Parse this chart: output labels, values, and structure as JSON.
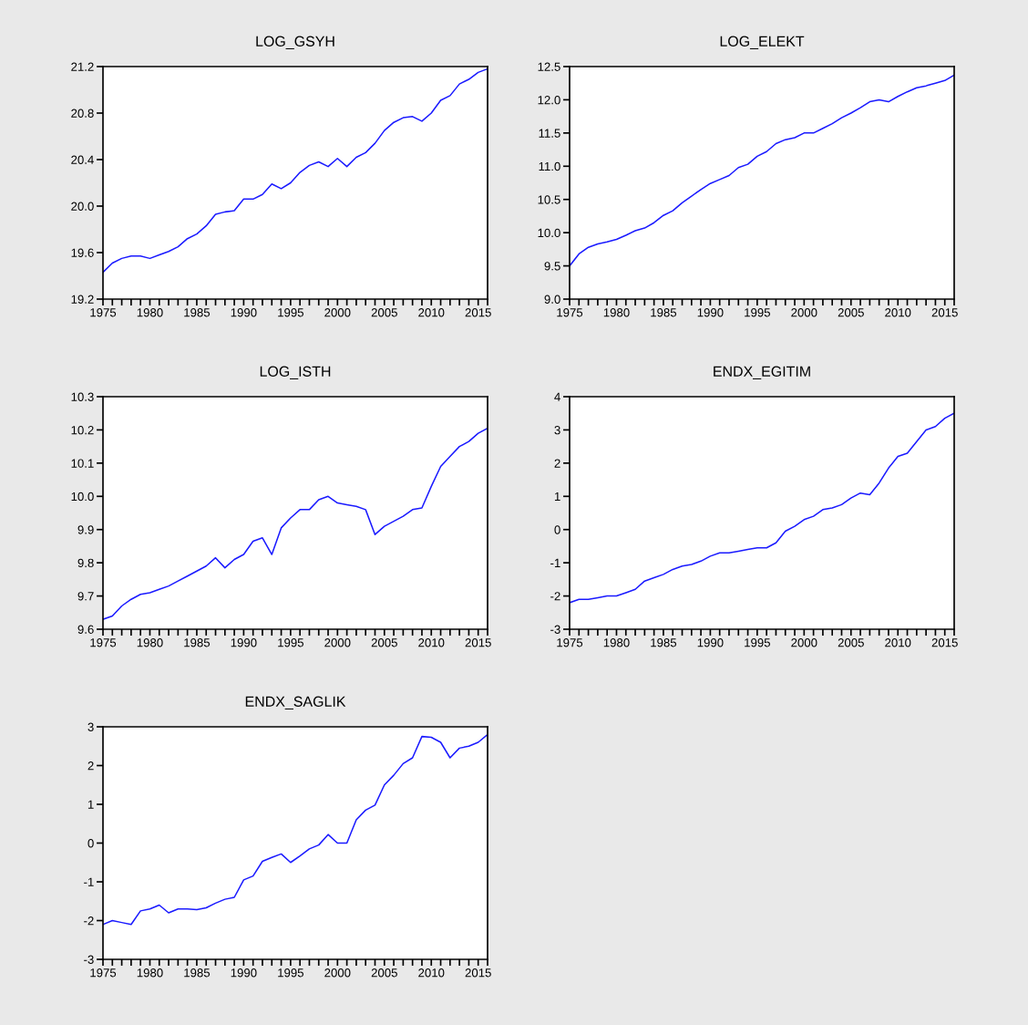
{
  "chart_data": [
    {
      "type": "line",
      "title": "LOG_GSYH",
      "x": [
        1975,
        1976,
        1977,
        1978,
        1979,
        1980,
        1981,
        1982,
        1983,
        1984,
        1985,
        1986,
        1987,
        1988,
        1989,
        1990,
        1991,
        1992,
        1993,
        1994,
        1995,
        1996,
        1997,
        1998,
        1999,
        2000,
        2001,
        2002,
        2003,
        2004,
        2005,
        2006,
        2007,
        2008,
        2009,
        2010,
        2011,
        2012,
        2013,
        2014,
        2015,
        2016
      ],
      "series": [
        {
          "color": "#1a1aff",
          "values": [
            19.43,
            19.51,
            19.55,
            19.57,
            19.57,
            19.55,
            19.58,
            19.61,
            19.65,
            19.72,
            19.76,
            19.83,
            19.93,
            19.95,
            19.96,
            20.06,
            20.06,
            20.1,
            20.19,
            20.15,
            20.2,
            20.29,
            20.35,
            20.38,
            20.34,
            20.41,
            20.34,
            20.42,
            20.46,
            20.54,
            20.65,
            20.72,
            20.76,
            20.77,
            20.73,
            20.8,
            20.91,
            20.95,
            21.05,
            21.09,
            21.15,
            21.18
          ]
        }
      ],
      "xlim": [
        1975,
        2016
      ],
      "xticks": [
        1975,
        {
          "value": 1976,
          "label": null
        },
        {
          "value": 1977,
          "label": null
        },
        {
          "value": 1978,
          "label": null
        },
        {
          "value": 1979,
          "label": null
        },
        1980,
        {
          "value": 1981,
          "label": null
        },
        {
          "value": 1982,
          "label": null
        },
        {
          "value": 1983,
          "label": null
        },
        {
          "value": 1984,
          "label": null
        },
        1985,
        {
          "value": 1986,
          "label": null
        },
        {
          "value": 1987,
          "label": null
        },
        {
          "value": 1988,
          "label": null
        },
        {
          "value": 1989,
          "label": null
        },
        1990,
        {
          "value": 1991,
          "label": null
        },
        {
          "value": 1992,
          "label": null
        },
        {
          "value": 1993,
          "label": null
        },
        {
          "value": 1994,
          "label": null
        },
        1995,
        {
          "value": 1996,
          "label": null
        },
        {
          "value": 1997,
          "label": null
        },
        {
          "value": 1998,
          "label": null
        },
        {
          "value": 1999,
          "label": null
        },
        2000,
        {
          "value": 2001,
          "label": null
        },
        {
          "value": 2002,
          "label": null
        },
        {
          "value": 2003,
          "label": null
        },
        {
          "value": 2004,
          "label": null
        },
        2005,
        {
          "value": 2006,
          "label": null
        },
        {
          "value": 2007,
          "label": null
        },
        {
          "value": 2008,
          "label": null
        },
        {
          "value": 2009,
          "label": null
        },
        2010,
        {
          "value": 2011,
          "label": null
        },
        {
          "value": 2012,
          "label": null
        },
        {
          "value": 2013,
          "label": null
        },
        {
          "value": 2014,
          "label": null
        },
        2015,
        {
          "value": 2016,
          "label": null
        }
      ],
      "ylim": [
        19.2,
        21.2
      ],
      "yticks": [
        19.2,
        19.6,
        {
          "value": 20,
          "label": "20.0"
        },
        20.4,
        20.8,
        21.2
      ],
      "grid": false,
      "legend": false
    },
    {
      "type": "line",
      "title": "LOG_ELEKT",
      "x": [
        1975,
        1976,
        1977,
        1978,
        1979,
        1980,
        1981,
        1982,
        1983,
        1984,
        1985,
        1986,
        1987,
        1988,
        1989,
        1990,
        1991,
        1992,
        1993,
        1994,
        1995,
        1996,
        1997,
        1998,
        1999,
        2000,
        2001,
        2002,
        2003,
        2004,
        2005,
        2006,
        2007,
        2008,
        2009,
        2010,
        2011,
        2012,
        2013,
        2014,
        2015,
        2016
      ],
      "series": [
        {
          "color": "#1a1aff",
          "values": [
            9.5,
            9.68,
            9.78,
            9.83,
            9.86,
            9.9,
            9.96,
            10.03,
            10.07,
            10.15,
            10.26,
            10.33,
            10.45,
            10.55,
            10.65,
            10.74,
            10.8,
            10.86,
            10.98,
            11.03,
            11.15,
            11.22,
            11.34,
            11.4,
            11.43,
            11.5,
            11.5,
            11.57,
            11.64,
            11.73,
            11.8,
            11.88,
            11.97,
            12.0,
            11.97,
            12.05,
            12.12,
            12.18,
            12.21,
            12.25,
            12.29,
            12.37
          ]
        }
      ],
      "xlim": [
        1975,
        2016
      ],
      "xticks": [
        1975,
        {
          "value": 1976,
          "label": null
        },
        {
          "value": 1977,
          "label": null
        },
        {
          "value": 1978,
          "label": null
        },
        {
          "value": 1979,
          "label": null
        },
        1980,
        {
          "value": 1981,
          "label": null
        },
        {
          "value": 1982,
          "label": null
        },
        {
          "value": 1983,
          "label": null
        },
        {
          "value": 1984,
          "label": null
        },
        1985,
        {
          "value": 1986,
          "label": null
        },
        {
          "value": 1987,
          "label": null
        },
        {
          "value": 1988,
          "label": null
        },
        {
          "value": 1989,
          "label": null
        },
        1990,
        {
          "value": 1991,
          "label": null
        },
        {
          "value": 1992,
          "label": null
        },
        {
          "value": 1993,
          "label": null
        },
        {
          "value": 1994,
          "label": null
        },
        1995,
        {
          "value": 1996,
          "label": null
        },
        {
          "value": 1997,
          "label": null
        },
        {
          "value": 1998,
          "label": null
        },
        {
          "value": 1999,
          "label": null
        },
        2000,
        {
          "value": 2001,
          "label": null
        },
        {
          "value": 2002,
          "label": null
        },
        {
          "value": 2003,
          "label": null
        },
        {
          "value": 2004,
          "label": null
        },
        2005,
        {
          "value": 2006,
          "label": null
        },
        {
          "value": 2007,
          "label": null
        },
        {
          "value": 2008,
          "label": null
        },
        {
          "value": 2009,
          "label": null
        },
        2010,
        {
          "value": 2011,
          "label": null
        },
        {
          "value": 2012,
          "label": null
        },
        {
          "value": 2013,
          "label": null
        },
        {
          "value": 2014,
          "label": null
        },
        2015,
        {
          "value": 2016,
          "label": null
        }
      ],
      "ylim": [
        9.0,
        12.5
      ],
      "yticks": [
        {
          "value": 9,
          "label": "9.0"
        },
        9.5,
        {
          "value": 10,
          "label": "10.0"
        },
        10.5,
        {
          "value": 11,
          "label": "11.0"
        },
        11.5,
        {
          "value": 12,
          "label": "12.0"
        },
        12.5
      ],
      "grid": false,
      "legend": false
    },
    {
      "type": "line",
      "title": "LOG_ISTH",
      "x": [
        1975,
        1976,
        1977,
        1978,
        1979,
        1980,
        1981,
        1982,
        1983,
        1984,
        1985,
        1986,
        1987,
        1988,
        1989,
        1990,
        1991,
        1992,
        1993,
        1994,
        1995,
        1996,
        1997,
        1998,
        1999,
        2000,
        2001,
        2002,
        2003,
        2004,
        2005,
        2006,
        2007,
        2008,
        2009,
        2010,
        2011,
        2012,
        2013,
        2014,
        2015,
        2016
      ],
      "series": [
        {
          "color": "#1a1aff",
          "values": [
            9.63,
            9.64,
            9.67,
            9.69,
            9.705,
            9.71,
            9.72,
            9.73,
            9.745,
            9.76,
            9.775,
            9.79,
            9.815,
            9.785,
            9.81,
            9.825,
            9.865,
            9.875,
            9.825,
            9.905,
            9.935,
            9.96,
            9.96,
            9.99,
            10.0,
            9.98,
            9.975,
            9.97,
            9.96,
            9.885,
            9.91,
            9.925,
            9.94,
            9.96,
            9.965,
            10.03,
            10.09,
            10.12,
            10.15,
            10.165,
            10.19,
            10.205
          ]
        }
      ],
      "xlim": [
        1975,
        2016
      ],
      "xticks": [
        1975,
        {
          "value": 1976,
          "label": null
        },
        {
          "value": 1977,
          "label": null
        },
        {
          "value": 1978,
          "label": null
        },
        {
          "value": 1979,
          "label": null
        },
        1980,
        {
          "value": 1981,
          "label": null
        },
        {
          "value": 1982,
          "label": null
        },
        {
          "value": 1983,
          "label": null
        },
        {
          "value": 1984,
          "label": null
        },
        1985,
        {
          "value": 1986,
          "label": null
        },
        {
          "value": 1987,
          "label": null
        },
        {
          "value": 1988,
          "label": null
        },
        {
          "value": 1989,
          "label": null
        },
        1990,
        {
          "value": 1991,
          "label": null
        },
        {
          "value": 1992,
          "label": null
        },
        {
          "value": 1993,
          "label": null
        },
        {
          "value": 1994,
          "label": null
        },
        1995,
        {
          "value": 1996,
          "label": null
        },
        {
          "value": 1997,
          "label": null
        },
        {
          "value": 1998,
          "label": null
        },
        {
          "value": 1999,
          "label": null
        },
        2000,
        {
          "value": 2001,
          "label": null
        },
        {
          "value": 2002,
          "label": null
        },
        {
          "value": 2003,
          "label": null
        },
        {
          "value": 2004,
          "label": null
        },
        2005,
        {
          "value": 2006,
          "label": null
        },
        {
          "value": 2007,
          "label": null
        },
        {
          "value": 2008,
          "label": null
        },
        {
          "value": 2009,
          "label": null
        },
        2010,
        {
          "value": 2011,
          "label": null
        },
        {
          "value": 2012,
          "label": null
        },
        {
          "value": 2013,
          "label": null
        },
        {
          "value": 2014,
          "label": null
        },
        2015,
        {
          "value": 2016,
          "label": null
        }
      ],
      "ylim": [
        9.6,
        10.3
      ],
      "yticks": [
        9.6,
        9.7,
        9.8,
        9.9,
        {
          "value": 10,
          "label": "10.0"
        },
        10.1,
        10.2,
        10.3
      ],
      "grid": false,
      "legend": false
    },
    {
      "type": "line",
      "title": "ENDX_EGITIM",
      "x": [
        1975,
        1976,
        1977,
        1978,
        1979,
        1980,
        1981,
        1982,
        1983,
        1984,
        1985,
        1986,
        1987,
        1988,
        1989,
        1990,
        1991,
        1992,
        1993,
        1994,
        1995,
        1996,
        1997,
        1998,
        1999,
        2000,
        2001,
        2002,
        2003,
        2004,
        2005,
        2006,
        2007,
        2008,
        2009,
        2010,
        2011,
        2012,
        2013,
        2014,
        2015,
        2016
      ],
      "series": [
        {
          "color": "#1a1aff",
          "values": [
            -2.2,
            -2.1,
            -2.1,
            -2.05,
            -2.0,
            -2.0,
            -1.9,
            -1.8,
            -1.55,
            -1.45,
            -1.35,
            -1.2,
            -1.1,
            -1.05,
            -0.95,
            -0.8,
            -0.7,
            -0.7,
            -0.65,
            -0.6,
            -0.55,
            -0.55,
            -0.4,
            -0.05,
            0.1,
            0.3,
            0.4,
            0.6,
            0.65,
            0.75,
            0.95,
            1.1,
            1.05,
            1.4,
            1.85,
            2.2,
            2.3,
            2.65,
            3.0,
            3.1,
            3.35,
            3.5
          ]
        }
      ],
      "xlim": [
        1975,
        2016
      ],
      "xticks": [
        1975,
        {
          "value": 1976,
          "label": null
        },
        {
          "value": 1977,
          "label": null
        },
        {
          "value": 1978,
          "label": null
        },
        {
          "value": 1979,
          "label": null
        },
        1980,
        {
          "value": 1981,
          "label": null
        },
        {
          "value": 1982,
          "label": null
        },
        {
          "value": 1983,
          "label": null
        },
        {
          "value": 1984,
          "label": null
        },
        1985,
        {
          "value": 1986,
          "label": null
        },
        {
          "value": 1987,
          "label": null
        },
        {
          "value": 1988,
          "label": null
        },
        {
          "value": 1989,
          "label": null
        },
        1990,
        {
          "value": 1991,
          "label": null
        },
        {
          "value": 1992,
          "label": null
        },
        {
          "value": 1993,
          "label": null
        },
        {
          "value": 1994,
          "label": null
        },
        1995,
        {
          "value": 1996,
          "label": null
        },
        {
          "value": 1997,
          "label": null
        },
        {
          "value": 1998,
          "label": null
        },
        {
          "value": 1999,
          "label": null
        },
        2000,
        {
          "value": 2001,
          "label": null
        },
        {
          "value": 2002,
          "label": null
        },
        {
          "value": 2003,
          "label": null
        },
        {
          "value": 2004,
          "label": null
        },
        2005,
        {
          "value": 2006,
          "label": null
        },
        {
          "value": 2007,
          "label": null
        },
        {
          "value": 2008,
          "label": null
        },
        {
          "value": 2009,
          "label": null
        },
        2010,
        {
          "value": 2011,
          "label": null
        },
        {
          "value": 2012,
          "label": null
        },
        {
          "value": 2013,
          "label": null
        },
        {
          "value": 2014,
          "label": null
        },
        2015,
        {
          "value": 2016,
          "label": null
        }
      ],
      "ylim": [
        -3,
        4
      ],
      "yticks": [
        -3,
        -2,
        -1,
        0,
        1,
        2,
        3,
        4
      ],
      "grid": false,
      "legend": false
    },
    {
      "type": "line",
      "title": "ENDX_SAGLIK",
      "x": [
        1975,
        1976,
        1977,
        1978,
        1979,
        1980,
        1981,
        1982,
        1983,
        1984,
        1985,
        1986,
        1987,
        1988,
        1989,
        1990,
        1991,
        1992,
        1993,
        1994,
        1995,
        1996,
        1997,
        1998,
        1999,
        2000,
        2001,
        2002,
        2003,
        2004,
        2005,
        2006,
        2007,
        2008,
        2009,
        2010,
        2011,
        2012,
        2013,
        2014,
        2015,
        2016
      ],
      "series": [
        {
          "color": "#1a1aff",
          "values": [
            -2.1,
            -2.0,
            -2.05,
            -2.1,
            -1.75,
            -1.7,
            -1.6,
            -1.8,
            -1.7,
            -1.7,
            -1.72,
            -1.67,
            -1.55,
            -1.45,
            -1.4,
            -0.95,
            -0.85,
            -0.47,
            -0.37,
            -0.28,
            -0.5,
            -0.33,
            -0.15,
            -0.05,
            0.22,
            0.0,
            0.0,
            0.6,
            0.85,
            0.98,
            1.5,
            1.75,
            2.05,
            2.2,
            2.75,
            2.73,
            2.6,
            2.2,
            2.45,
            2.5,
            2.6,
            2.8
          ]
        }
      ],
      "xlim": [
        1975,
        2016
      ],
      "xticks": [
        1975,
        {
          "value": 1976,
          "label": null
        },
        {
          "value": 1977,
          "label": null
        },
        {
          "value": 1978,
          "label": null
        },
        {
          "value": 1979,
          "label": null
        },
        1980,
        {
          "value": 1981,
          "label": null
        },
        {
          "value": 1982,
          "label": null
        },
        {
          "value": 1983,
          "label": null
        },
        {
          "value": 1984,
          "label": null
        },
        1985,
        {
          "value": 1986,
          "label": null
        },
        {
          "value": 1987,
          "label": null
        },
        {
          "value": 1988,
          "label": null
        },
        {
          "value": 1989,
          "label": null
        },
        1990,
        {
          "value": 1991,
          "label": null
        },
        {
          "value": 1992,
          "label": null
        },
        {
          "value": 1993,
          "label": null
        },
        {
          "value": 1994,
          "label": null
        },
        1995,
        {
          "value": 1996,
          "label": null
        },
        {
          "value": 1997,
          "label": null
        },
        {
          "value": 1998,
          "label": null
        },
        {
          "value": 1999,
          "label": null
        },
        2000,
        {
          "value": 2001,
          "label": null
        },
        {
          "value": 2002,
          "label": null
        },
        {
          "value": 2003,
          "label": null
        },
        {
          "value": 2004,
          "label": null
        },
        2005,
        {
          "value": 2006,
          "label": null
        },
        {
          "value": 2007,
          "label": null
        },
        {
          "value": 2008,
          "label": null
        },
        {
          "value": 2009,
          "label": null
        },
        2010,
        {
          "value": 2011,
          "label": null
        },
        {
          "value": 2012,
          "label": null
        },
        {
          "value": 2013,
          "label": null
        },
        {
          "value": 2014,
          "label": null
        },
        2015,
        {
          "value": 2016,
          "label": null
        }
      ],
      "ylim": [
        -3,
        3
      ],
      "yticks": [
        -3,
        -2,
        -1,
        0,
        1,
        2,
        3
      ],
      "grid": false,
      "legend": false
    }
  ]
}
